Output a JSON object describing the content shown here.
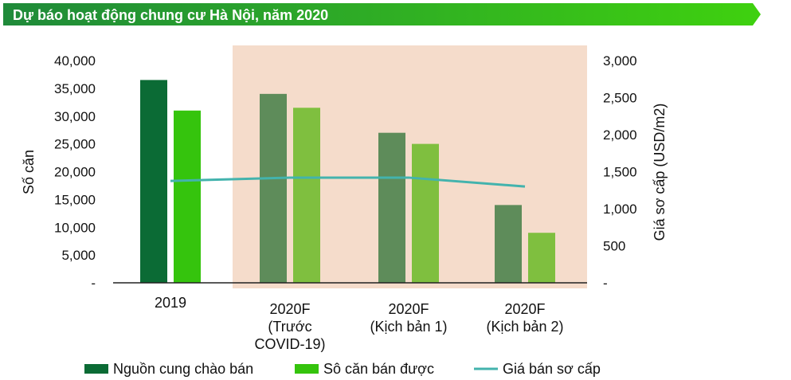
{
  "banner": {
    "title": "Dự báo hoạt động chung cư Hà Nội, năm 2020"
  },
  "colors": {
    "banner_start": "#1f8a3a",
    "banner_end": "#3fd10f",
    "supply": "#0b6b35",
    "supply_forecast": "#5e8c5a",
    "sold": "#35c40d",
    "sold_forecast": "#7fbf3f",
    "price_line": "#43b3ad",
    "forecast_bg": "#f5dccb"
  },
  "chart_data": {
    "type": "bar",
    "title": "Dự báo hoạt động chung cư Hà Nội, năm 2020",
    "categories": [
      [
        "2019"
      ],
      [
        "2020F",
        "(Trước",
        "COVID-19)"
      ],
      [
        "2020F",
        "(Kịch bản 1)"
      ],
      [
        "2020F",
        "(Kịch bản 2)"
      ]
    ],
    "series": [
      {
        "name": "Nguồn cung chào bán",
        "axis": "left",
        "type": "bar",
        "values": [
          36500,
          34000,
          27000,
          14000
        ]
      },
      {
        "name": "Sô căn bán được",
        "axis": "left",
        "type": "bar",
        "values": [
          31000,
          31500,
          25000,
          9000
        ]
      },
      {
        "name": "Giá bán sơ cấp",
        "axis": "right",
        "type": "line",
        "values": [
          1375,
          1420,
          1420,
          1300
        ]
      }
    ],
    "ylabel": "Số căn",
    "y2label": "Giá sơ cấp (USD/m2)",
    "ylim": [
      0,
      40000
    ],
    "y2lim": [
      0,
      3000
    ],
    "yticks": [
      "-",
      "5,000",
      "10,000",
      "15,000",
      "20,000",
      "25,000",
      "30,000",
      "35,000",
      "40,000"
    ],
    "y2ticks": [
      "-",
      "500",
      "1,000",
      "1,500",
      "2,000",
      "2,500",
      "3,000"
    ],
    "forecast_shaded_from_category": 1,
    "legend": [
      "Nguồn cung chào bán",
      "Sô căn bán được",
      "Giá bán sơ cấp"
    ],
    "legend_position": "bottom"
  }
}
